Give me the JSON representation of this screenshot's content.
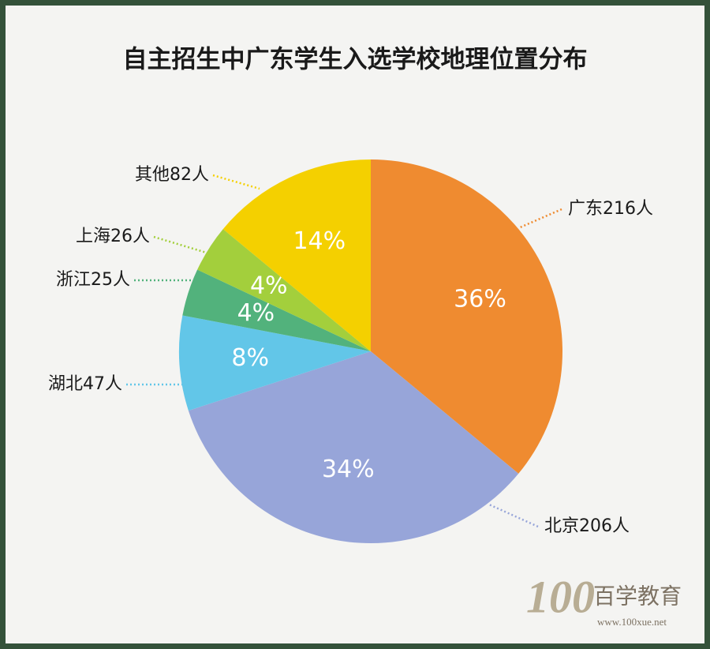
{
  "chart_data": {
    "type": "pie",
    "title": "自主招生中广东学生入选学校地理位置分布",
    "categories": [
      "广东216人",
      "北京206人",
      "湖北47人",
      "浙江25人",
      "上海26人",
      "其他82人"
    ],
    "values": [
      36,
      34,
      8,
      4,
      4,
      14
    ],
    "value_labels": [
      "36%",
      "34%",
      "8%",
      "4%",
      "4%",
      "14%"
    ],
    "colors": [
      "#ef8b30",
      "#97a5d9",
      "#62c6e8",
      "#52b27c",
      "#a3cf3c",
      "#f4d000"
    ]
  },
  "footer": {
    "logo": "100",
    "brand": "百学教育",
    "url": "www.100xue.net"
  }
}
